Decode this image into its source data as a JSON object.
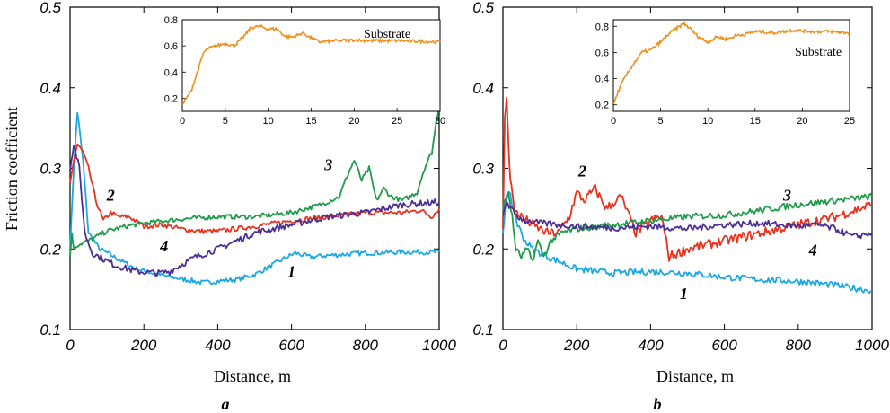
{
  "figure": {
    "ylabel": "Friction coefficient",
    "panel_letters": [
      "a",
      "b"
    ]
  },
  "chart_data": [
    {
      "type": "line",
      "panel": "a",
      "xlabel": "Distance, m",
      "ylabel": "Friction coefficient",
      "xlim": [
        0,
        1000
      ],
      "ylim": [
        0.1,
        0.5
      ],
      "x_ticks": [
        0,
        200,
        400,
        600,
        800,
        1000
      ],
      "y_ticks": [
        0.1,
        0.2,
        0.3,
        0.4,
        0.5
      ],
      "grid": false,
      "series": [
        {
          "name": "1",
          "color": "#1BA7E1",
          "noise": 0.003,
          "x": [
            0,
            10,
            20,
            35,
            50,
            80,
            120,
            180,
            240,
            300,
            360,
            400,
            450,
            500,
            540,
            580,
            610,
            650,
            700,
            800,
            900,
            1000
          ],
          "y": [
            0.2,
            0.3,
            0.37,
            0.31,
            0.22,
            0.2,
            0.19,
            0.175,
            0.168,
            0.163,
            0.158,
            0.16,
            0.162,
            0.168,
            0.178,
            0.188,
            0.195,
            0.19,
            0.192,
            0.195,
            0.196,
            0.196
          ]
        },
        {
          "name": "2",
          "color": "#E8321E",
          "noise": 0.003,
          "x": [
            0,
            10,
            20,
            35,
            50,
            70,
            90,
            110,
            130,
            160,
            200,
            250,
            300,
            350,
            400,
            450,
            500,
            600,
            700,
            800,
            900,
            950,
            980,
            1000
          ],
          "y": [
            0.28,
            0.31,
            0.33,
            0.32,
            0.3,
            0.26,
            0.235,
            0.245,
            0.24,
            0.24,
            0.228,
            0.23,
            0.225,
            0.222,
            0.222,
            0.225,
            0.228,
            0.235,
            0.24,
            0.245,
            0.245,
            0.248,
            0.24,
            0.25
          ]
        },
        {
          "name": "3",
          "color": "#1E9B48",
          "noise": 0.003,
          "x": [
            0,
            5,
            10,
            20,
            50,
            100,
            150,
            200,
            300,
            400,
            500,
            600,
            680,
            730,
            750,
            770,
            790,
            810,
            830,
            850,
            870,
            900,
            940,
            960,
            980,
            1000
          ],
          "y": [
            0.19,
            0.22,
            0.2,
            0.205,
            0.21,
            0.222,
            0.228,
            0.232,
            0.237,
            0.24,
            0.24,
            0.245,
            0.255,
            0.265,
            0.29,
            0.31,
            0.285,
            0.3,
            0.26,
            0.275,
            0.265,
            0.26,
            0.27,
            0.3,
            0.32,
            0.38
          ]
        },
        {
          "name": "4",
          "color": "#4A2E95",
          "noise": 0.004,
          "x": [
            0,
            10,
            25,
            40,
            60,
            80,
            120,
            180,
            240,
            270,
            300,
            340,
            400,
            450,
            500,
            600,
            700,
            800,
            900,
            1000
          ],
          "y": [
            0.3,
            0.33,
            0.3,
            0.22,
            0.195,
            0.19,
            0.18,
            0.172,
            0.17,
            0.172,
            0.18,
            0.19,
            0.2,
            0.21,
            0.22,
            0.23,
            0.24,
            0.245,
            0.255,
            0.258
          ]
        }
      ],
      "curve_labels": [
        {
          "text": "1",
          "x": 600,
          "y": 0.165
        },
        {
          "text": "2",
          "x": 110,
          "y": 0.26
        },
        {
          "text": "3",
          "x": 700,
          "y": 0.298
        },
        {
          "text": "4",
          "x": 255,
          "y": 0.197
        }
      ],
      "inset": {
        "label": "Substrate",
        "color": "#F0901A",
        "noise": 0.012,
        "xlim": [
          0,
          30
        ],
        "ylim": [
          0.1,
          0.8
        ],
        "x_ticks": [
          0,
          5,
          10,
          15,
          20,
          25,
          30
        ],
        "y_ticks": [
          0.2,
          0.4,
          0.6,
          0.8
        ],
        "x": [
          0,
          1,
          2,
          2.5,
          3,
          4,
          5,
          6,
          7,
          8,
          9,
          10,
          11,
          12,
          13,
          14,
          15,
          16,
          18,
          20,
          22,
          25,
          28,
          30
        ],
        "y": [
          0.15,
          0.25,
          0.45,
          0.55,
          0.58,
          0.6,
          0.62,
          0.6,
          0.66,
          0.74,
          0.75,
          0.73,
          0.73,
          0.67,
          0.67,
          0.7,
          0.66,
          0.63,
          0.64,
          0.645,
          0.64,
          0.64,
          0.635,
          0.63
        ]
      }
    },
    {
      "type": "line",
      "panel": "b",
      "xlabel": "Distance, m",
      "ylabel": "Friction coefficient",
      "xlim": [
        0,
        1000
      ],
      "ylim": [
        0.1,
        0.5
      ],
      "x_ticks": [
        0,
        200,
        400,
        600,
        800,
        1000
      ],
      "y_ticks": [
        0.1,
        0.2,
        0.3,
        0.4,
        0.5
      ],
      "grid": false,
      "series": [
        {
          "name": "1",
          "color": "#1BA7E1",
          "noise": 0.004,
          "x": [
            0,
            10,
            20,
            40,
            60,
            80,
            100,
            120,
            150,
            200,
            300,
            400,
            500,
            600,
            700,
            800,
            900,
            1000
          ],
          "y": [
            0.22,
            0.27,
            0.265,
            0.23,
            0.21,
            0.2,
            0.195,
            0.19,
            0.185,
            0.175,
            0.17,
            0.172,
            0.17,
            0.165,
            0.162,
            0.16,
            0.155,
            0.148
          ]
        },
        {
          "name": "2",
          "color": "#E8321E",
          "noise": 0.006,
          "x": [
            0,
            5,
            10,
            15,
            20,
            30,
            50,
            80,
            120,
            150,
            180,
            200,
            220,
            250,
            280,
            320,
            360,
            400,
            430,
            450,
            500,
            550,
            600,
            700,
            800,
            900,
            1000
          ],
          "y": [
            0.22,
            0.36,
            0.39,
            0.33,
            0.29,
            0.25,
            0.24,
            0.23,
            0.22,
            0.22,
            0.24,
            0.27,
            0.26,
            0.275,
            0.25,
            0.265,
            0.22,
            0.235,
            0.24,
            0.19,
            0.2,
            0.205,
            0.21,
            0.22,
            0.23,
            0.24,
            0.255
          ]
        },
        {
          "name": "3",
          "color": "#1E9B48",
          "noise": 0.004,
          "x": [
            0,
            15,
            25,
            35,
            50,
            65,
            80,
            95,
            110,
            130,
            160,
            200,
            300,
            400,
            500,
            600,
            700,
            800,
            900,
            1000
          ],
          "y": [
            0.25,
            0.27,
            0.24,
            0.2,
            0.19,
            0.2,
            0.185,
            0.21,
            0.19,
            0.21,
            0.22,
            0.225,
            0.23,
            0.235,
            0.24,
            0.242,
            0.248,
            0.255,
            0.26,
            0.265
          ]
        },
        {
          "name": "4",
          "color": "#4A2E95",
          "noise": 0.004,
          "x": [
            0,
            10,
            20,
            40,
            60,
            100,
            150,
            200,
            300,
            400,
            500,
            600,
            700,
            800,
            850,
            900,
            950,
            1000
          ],
          "y": [
            0.24,
            0.26,
            0.25,
            0.24,
            0.235,
            0.232,
            0.23,
            0.228,
            0.226,
            0.228,
            0.225,
            0.23,
            0.232,
            0.228,
            0.23,
            0.225,
            0.215,
            0.22
          ]
        }
      ],
      "curve_labels": [
        {
          "text": "1",
          "x": 490,
          "y": 0.138
        },
        {
          "text": "2",
          "x": 215,
          "y": 0.29
        },
        {
          "text": "3",
          "x": 770,
          "y": 0.26
        },
        {
          "text": "4",
          "x": 840,
          "y": 0.192
        }
      ],
      "inset": {
        "label": "Substrate",
        "color": "#F0901A",
        "noise": 0.012,
        "xlim": [
          0,
          25
        ],
        "ylim": [
          0.15,
          0.85
        ],
        "x_ticks": [
          0,
          5,
          10,
          15,
          20,
          25
        ],
        "y_ticks": [
          0.2,
          0.4,
          0.6,
          0.8
        ],
        "x": [
          0,
          0.5,
          1,
          2,
          3,
          4,
          5,
          6,
          7,
          7.5,
          8,
          9,
          10,
          11,
          12,
          13,
          14,
          15,
          17,
          19,
          21,
          23,
          25
        ],
        "y": [
          0.2,
          0.3,
          0.38,
          0.5,
          0.6,
          0.62,
          0.68,
          0.75,
          0.8,
          0.82,
          0.79,
          0.72,
          0.68,
          0.72,
          0.7,
          0.73,
          0.74,
          0.76,
          0.75,
          0.77,
          0.76,
          0.76,
          0.75
        ]
      }
    }
  ]
}
